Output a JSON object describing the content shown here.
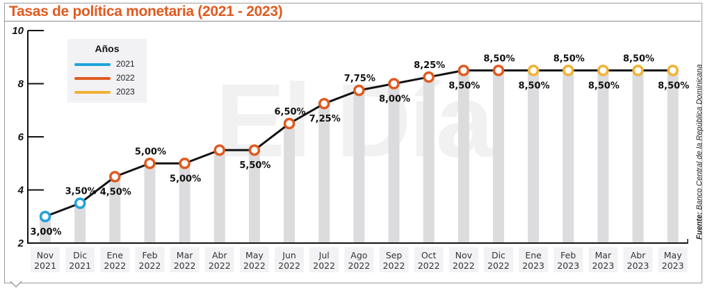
{
  "chart_data": {
    "type": "line",
    "title": "Tasas de política monetaria (2021 - 2023)",
    "xlabel": "",
    "ylabel": "",
    "ylim": [
      2,
      10
    ],
    "yticks": [
      "2",
      "4",
      "6",
      "8",
      "10"
    ],
    "grid": false,
    "categories": [
      {
        "month": "Nov",
        "year": "2021"
      },
      {
        "month": "Dic",
        "year": "2021"
      },
      {
        "month": "Ene",
        "year": "2022"
      },
      {
        "month": "Feb",
        "year": "2022"
      },
      {
        "month": "Mar",
        "year": "2022"
      },
      {
        "month": "Abr",
        "year": "2022"
      },
      {
        "month": "May",
        "year": "2022"
      },
      {
        "month": "Jun",
        "year": "2022"
      },
      {
        "month": "Jul",
        "year": "2022"
      },
      {
        "month": "Ago",
        "year": "2022"
      },
      {
        "month": "Sep",
        "year": "2022"
      },
      {
        "month": "Oct",
        "year": "2022"
      },
      {
        "month": "Nov",
        "year": "2022"
      },
      {
        "month": "Dic",
        "year": "2022"
      },
      {
        "month": "Ene",
        "year": "2023"
      },
      {
        "month": "Feb",
        "year": "2023"
      },
      {
        "month": "Mar",
        "year": "2023"
      },
      {
        "month": "Abr",
        "year": "2023"
      },
      {
        "month": "May",
        "year": "2023"
      }
    ],
    "values": [
      3.0,
      3.5,
      4.5,
      5.0,
      5.0,
      5.5,
      5.5,
      6.5,
      7.25,
      7.75,
      8.0,
      8.25,
      8.5,
      8.5,
      8.5,
      8.5,
      8.5,
      8.5,
      8.5
    ],
    "data_labels": [
      "3,00%",
      "3,50%",
      "4,50%",
      "5,00%",
      "5,00%",
      "",
      "5,50%",
      "6,50%",
      "7,25%",
      "7,75%",
      "8,00%",
      "8,25%",
      "8,50%",
      "8,50%",
      "8,50%",
      "8,50%",
      "8,50%",
      "8,50%",
      "8,50%"
    ],
    "label_positions": [
      "below",
      "above",
      "below",
      "above",
      "below",
      "none",
      "below",
      "above",
      "below",
      "above",
      "below",
      "above",
      "below",
      "above",
      "below",
      "above",
      "below",
      "above",
      "below"
    ],
    "point_years": [
      "2021",
      "2021",
      "2022",
      "2022",
      "2022",
      "2022",
      "2022",
      "2022",
      "2022",
      "2022",
      "2022",
      "2022",
      "2022",
      "2022",
      "2023",
      "2023",
      "2023",
      "2023",
      "2023"
    ],
    "legend": {
      "title": "Años",
      "placement": "top-left",
      "entries": [
        {
          "label": "2021",
          "color": "#1fa3dc"
        },
        {
          "label": "2022",
          "color": "#e05a1f"
        },
        {
          "label": "2023",
          "color": "#f2b134"
        }
      ]
    },
    "source": {
      "prefix": "Fuente:",
      "text": "Banco Central de la República Dominicana"
    },
    "watermark": "El Día"
  },
  "colors": {
    "title": "#e05a1f",
    "line": "#111111",
    "bars": "#dcdcde",
    "label_bg": "#f2f2f4"
  }
}
